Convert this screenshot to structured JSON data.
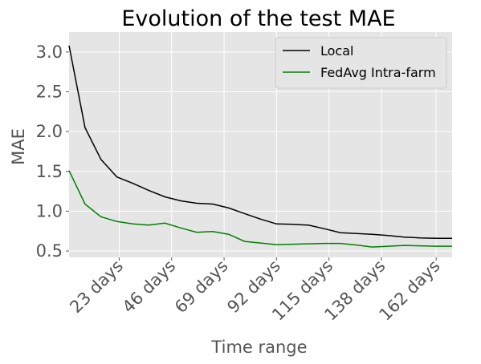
{
  "chart_data": {
    "type": "line",
    "title": "Evolution of the test MAE",
    "xlabel": "Time range",
    "ylabel": "MAE",
    "x": [
      1,
      8,
      15,
      22,
      29,
      36,
      43,
      50,
      57,
      64,
      71,
      78,
      85,
      92,
      99,
      106,
      113,
      120,
      127,
      134,
      141,
      148,
      155,
      162,
      169
    ],
    "xlim": [
      1,
      169
    ],
    "ylim": [
      0.42,
      3.25
    ],
    "xticks": [
      {
        "value": 23,
        "label": "23 days"
      },
      {
        "value": 46,
        "label": "46 days"
      },
      {
        "value": 69,
        "label": "69 days"
      },
      {
        "value": 92,
        "label": "92 days"
      },
      {
        "value": 115,
        "label": "115 days"
      },
      {
        "value": 138,
        "label": "138 days"
      },
      {
        "value": 162,
        "label": "162 days"
      }
    ],
    "yticks": [
      {
        "value": 0.5,
        "label": "0.5"
      },
      {
        "value": 1.0,
        "label": "1.0"
      },
      {
        "value": 1.5,
        "label": "1.5"
      },
      {
        "value": 2.0,
        "label": "2.0"
      },
      {
        "value": 2.5,
        "label": "2.5"
      },
      {
        "value": 3.0,
        "label": "3.0"
      }
    ],
    "grid": true,
    "legend_position": "top-right",
    "series": [
      {
        "name": "Local",
        "color": "#000000",
        "values": [
          3.08,
          2.05,
          1.65,
          1.43,
          1.35,
          1.26,
          1.18,
          1.13,
          1.1,
          1.09,
          1.04,
          0.97,
          0.9,
          0.84,
          0.835,
          0.825,
          0.78,
          0.73,
          0.72,
          0.71,
          0.695,
          0.675,
          0.665,
          0.66,
          0.66
        ]
      },
      {
        "name": "FedAvg Intra-farm",
        "color": "#008000",
        "values": [
          1.51,
          1.09,
          0.93,
          0.87,
          0.84,
          0.825,
          0.85,
          0.79,
          0.735,
          0.745,
          0.71,
          0.62,
          0.6,
          0.58,
          0.585,
          0.59,
          0.595,
          0.595,
          0.575,
          0.55,
          0.56,
          0.57,
          0.565,
          0.56,
          0.56
        ]
      }
    ]
  }
}
